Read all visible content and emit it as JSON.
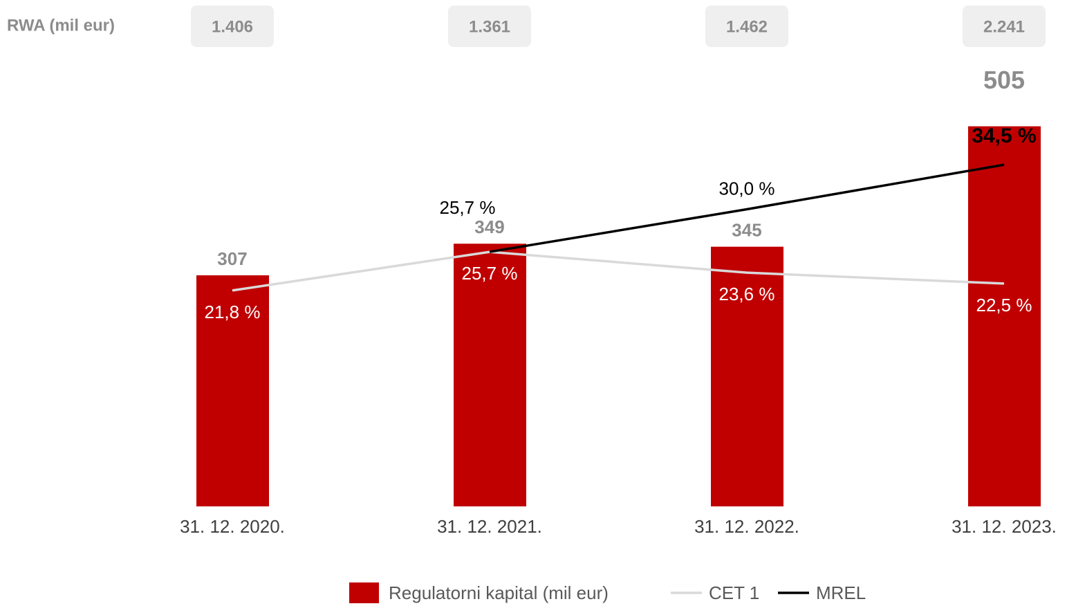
{
  "chart_data": {
    "type": "bar-line",
    "rwa": {
      "label": "RWA (mil eur)",
      "values": [
        "1.406",
        "1.361",
        "1.462",
        "2.241"
      ]
    },
    "categories": [
      "31. 12. 2020.",
      "31. 12. 2021.",
      "31. 12. 2022.",
      "31. 12. 2023."
    ],
    "series": [
      {
        "name": "Regulatorni kapital (mil eur)",
        "type": "bar",
        "color": "#c00000",
        "values": [
          307,
          349,
          345,
          505
        ]
      },
      {
        "name": "CET 1",
        "type": "line",
        "axis": "y2",
        "color": "#d9d9d9",
        "values": [
          21.8,
          25.7,
          23.6,
          22.5
        ],
        "value_labels": [
          "21,8 %",
          "25,7 %",
          "23,6 %",
          "22,5 %"
        ]
      },
      {
        "name": "MREL",
        "type": "line",
        "axis": "y2",
        "color": "#000000",
        "values": [
          null,
          25.7,
          30.0,
          34.5
        ],
        "value_labels": [
          null,
          "25,7 %",
          "30,0 %",
          "34,5 %"
        ]
      }
    ],
    "ylim": [
      0,
      500
    ],
    "y2lim": [
      0,
      38
    ],
    "legend": "bottom"
  }
}
